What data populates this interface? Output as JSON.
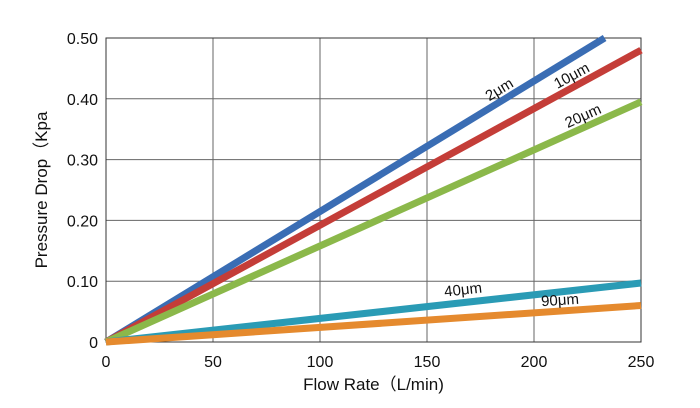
{
  "chart_data": {
    "type": "line",
    "title": "",
    "xlabel": "Flow Rate（L/min)",
    "ylabel": "Pressure Drop（Kpa",
    "xlim": [
      0,
      250
    ],
    "ylim": [
      0,
      0.5
    ],
    "x_ticks": [
      0,
      50,
      100,
      150,
      200,
      250
    ],
    "y_ticks": [
      0,
      0.1,
      0.2,
      0.3,
      0.4,
      0.5
    ],
    "x_tick_labels": [
      "0",
      "50",
      "100",
      "150",
      "200",
      "250"
    ],
    "y_tick_labels": [
      "0",
      "0.10",
      "0.20",
      "0.30",
      "0.40",
      "0.50"
    ],
    "grid": true,
    "series": [
      {
        "label": "2μm",
        "color": "#3a6db4",
        "x": [
          0,
          233
        ],
        "y": [
          0,
          0.5
        ]
      },
      {
        "label": "10μm",
        "color": "#c43d38",
        "x": [
          0,
          250
        ],
        "y": [
          0,
          0.48
        ]
      },
      {
        "label": "20μm",
        "color": "#8bb84a",
        "x": [
          0,
          250
        ],
        "y": [
          0,
          0.395
        ]
      },
      {
        "label": "40μm",
        "color": "#2a9bb5",
        "x": [
          0,
          250
        ],
        "y": [
          0,
          0.097
        ]
      },
      {
        "label": "90μm",
        "color": "#e58a2e",
        "x": [
          0,
          250
        ],
        "y": [
          0,
          0.06
        ]
      }
    ]
  }
}
